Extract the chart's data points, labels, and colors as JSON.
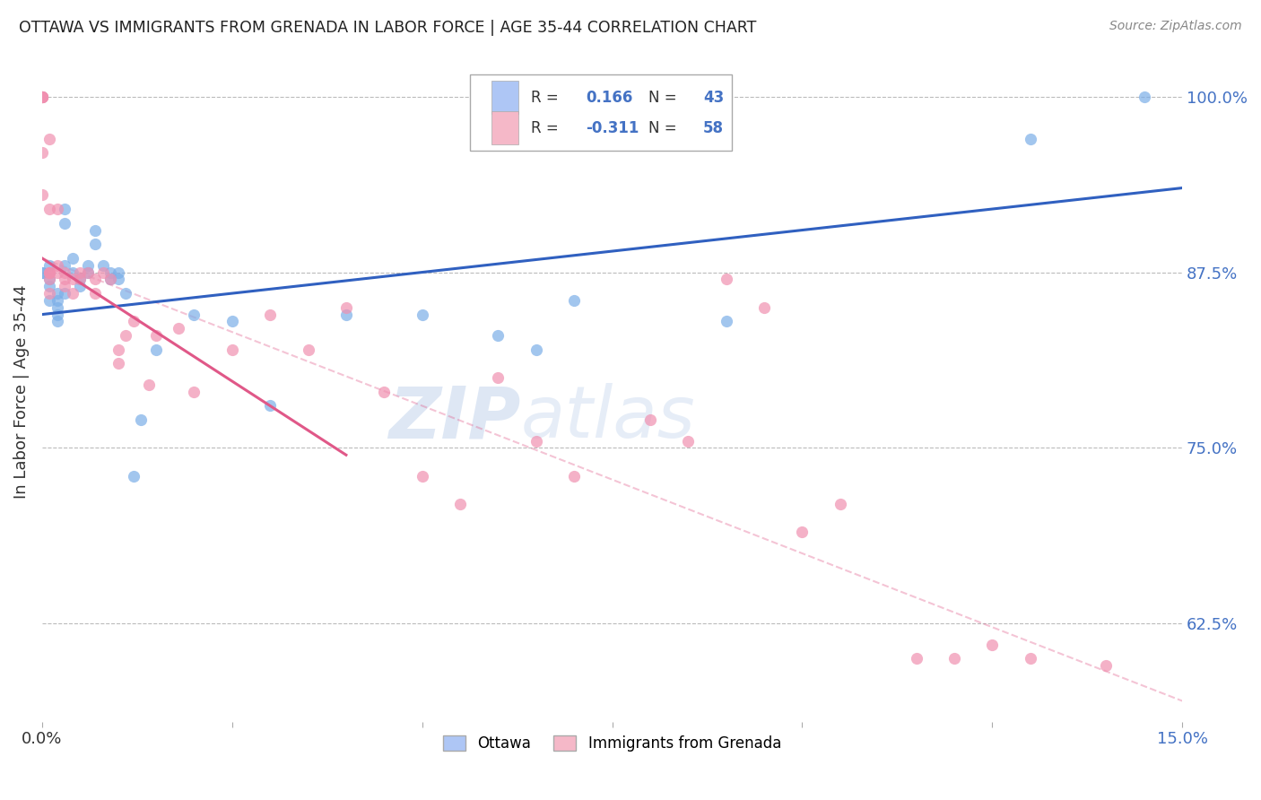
{
  "title": "OTTAWA VS IMMIGRANTS FROM GRENADA IN LABOR FORCE | AGE 35-44 CORRELATION CHART",
  "source": "Source: ZipAtlas.com",
  "ylabel": "In Labor Force | Age 35-44",
  "xmin": 0.0,
  "xmax": 0.15,
  "ymin": 0.555,
  "ymax": 1.025,
  "yticks": [
    0.625,
    0.75,
    0.875,
    1.0
  ],
  "ytick_labels": [
    "62.5%",
    "75.0%",
    "87.5%",
    "100.0%"
  ],
  "xticks": [
    0.0,
    0.025,
    0.05,
    0.075,
    0.1,
    0.125,
    0.15
  ],
  "xtick_labels": [
    "0.0%",
    "",
    "",
    "",
    "",
    "",
    "15.0%"
  ],
  "legend_entries": [
    {
      "label": "Ottawa",
      "color": "#aec6f5",
      "R": "0.166",
      "N": "43"
    },
    {
      "label": "Immigrants from Grenada",
      "color": "#f5b8c8",
      "R": "-0.311",
      "N": "58"
    }
  ],
  "ottawa_scatter_x": [
    0.0,
    0.0,
    0.001,
    0.001,
    0.001,
    0.001,
    0.002,
    0.002,
    0.002,
    0.002,
    0.002,
    0.003,
    0.003,
    0.003,
    0.003,
    0.004,
    0.004,
    0.005,
    0.005,
    0.006,
    0.006,
    0.007,
    0.007,
    0.008,
    0.009,
    0.009,
    0.01,
    0.01,
    0.011,
    0.012,
    0.013,
    0.015,
    0.02,
    0.025,
    0.03,
    0.04,
    0.05,
    0.06,
    0.065,
    0.07,
    0.09,
    0.13,
    0.145
  ],
  "ottawa_scatter_y": [
    0.875,
    0.875,
    0.88,
    0.87,
    0.865,
    0.855,
    0.86,
    0.855,
    0.85,
    0.845,
    0.84,
    0.92,
    0.91,
    0.88,
    0.86,
    0.885,
    0.875,
    0.87,
    0.865,
    0.88,
    0.875,
    0.905,
    0.895,
    0.88,
    0.875,
    0.87,
    0.875,
    0.87,
    0.86,
    0.73,
    0.77,
    0.82,
    0.845,
    0.84,
    0.78,
    0.845,
    0.845,
    0.83,
    0.82,
    0.855,
    0.84,
    0.97,
    1.0
  ],
  "grenada_scatter_x": [
    0.0,
    0.0,
    0.0,
    0.0,
    0.0,
    0.0,
    0.0,
    0.001,
    0.001,
    0.001,
    0.001,
    0.001,
    0.001,
    0.001,
    0.002,
    0.002,
    0.002,
    0.003,
    0.003,
    0.003,
    0.004,
    0.004,
    0.005,
    0.005,
    0.006,
    0.007,
    0.007,
    0.008,
    0.009,
    0.01,
    0.01,
    0.011,
    0.012,
    0.014,
    0.015,
    0.018,
    0.02,
    0.025,
    0.03,
    0.035,
    0.04,
    0.045,
    0.05,
    0.055,
    0.06,
    0.065,
    0.07,
    0.08,
    0.085,
    0.09,
    0.095,
    0.1,
    0.105,
    0.115,
    0.12,
    0.125,
    0.13,
    0.14
  ],
  "grenada_scatter_y": [
    1.0,
    1.0,
    1.0,
    1.0,
    1.0,
    0.96,
    0.93,
    0.97,
    0.92,
    0.875,
    0.875,
    0.875,
    0.87,
    0.86,
    0.92,
    0.88,
    0.875,
    0.875,
    0.87,
    0.865,
    0.87,
    0.86,
    0.875,
    0.87,
    0.875,
    0.87,
    0.86,
    0.875,
    0.87,
    0.82,
    0.81,
    0.83,
    0.84,
    0.795,
    0.83,
    0.835,
    0.79,
    0.82,
    0.845,
    0.82,
    0.85,
    0.79,
    0.73,
    0.71,
    0.8,
    0.755,
    0.73,
    0.77,
    0.755,
    0.87,
    0.85,
    0.69,
    0.71,
    0.6,
    0.6,
    0.61,
    0.6,
    0.595
  ],
  "ottawa_line_x": [
    0.0,
    0.15
  ],
  "ottawa_line_y": [
    0.845,
    0.935
  ],
  "grenada_solid_line_x": [
    0.0,
    0.04
  ],
  "grenada_solid_line_y": [
    0.885,
    0.745
  ],
  "grenada_dashed_line_x": [
    0.0,
    0.15
  ],
  "grenada_dashed_line_y": [
    0.885,
    0.57
  ],
  "watermark_top": "ZIP",
  "watermark_bot": "atlas",
  "title_color": "#222222",
  "axis_label_color": "#333333",
  "tick_color_y": "#4472c4",
  "grid_color": "#bbbbbb",
  "scatter_ottawa_color": "#7baee8",
  "scatter_grenada_color": "#f090b0",
  "line_ottawa_color": "#3060c0",
  "line_grenada_color": "#e05888",
  "legend_box_ottawa": "#aec6f5",
  "legend_box_grenada": "#f5b8c8",
  "legend_R_color": "#4472c4",
  "legend_N_color": "#4472c4"
}
